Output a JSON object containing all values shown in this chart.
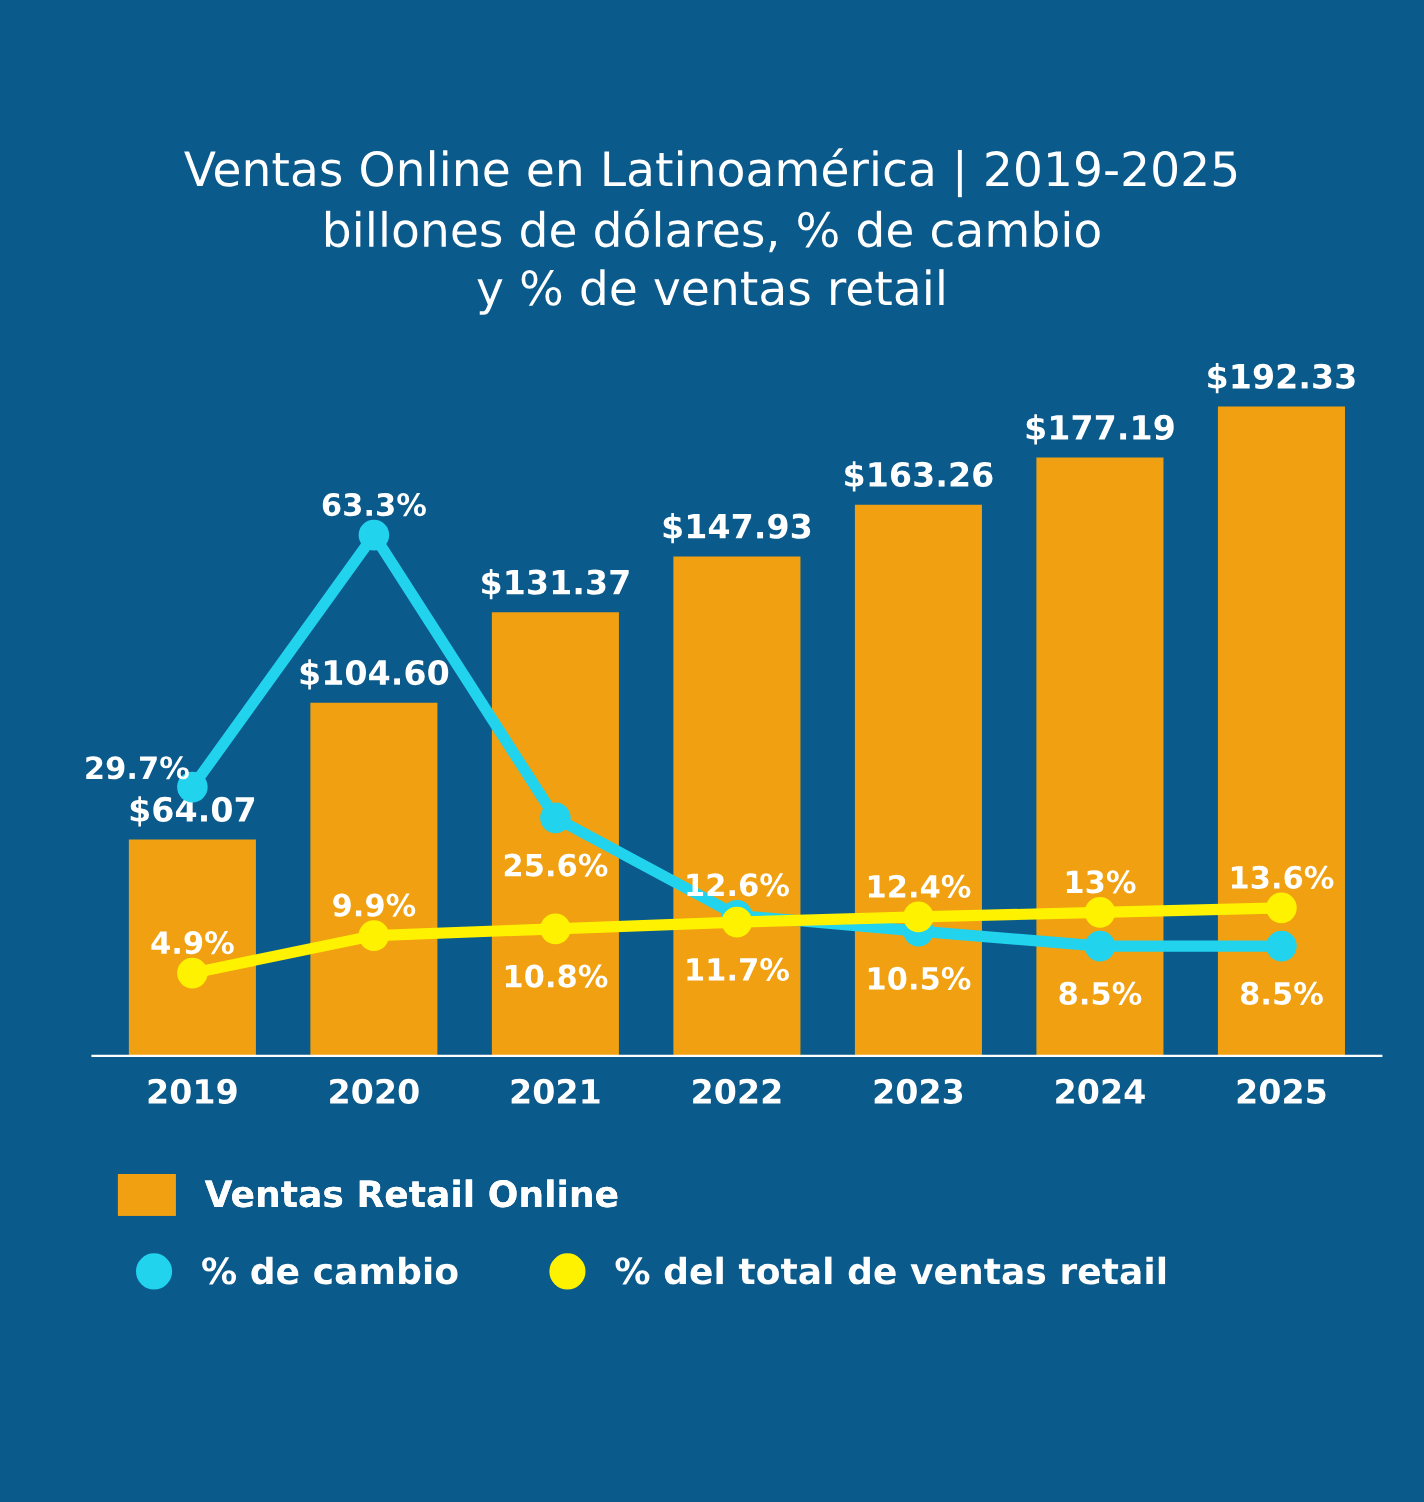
{
  "chart_data": {
    "type": "bar",
    "title": "Ventas Online en Latinoamérica | 2019-2025",
    "subtitle": "billones de dólares, % de cambio\ny % de ventas retail",
    "categories": [
      "2019",
      "2020",
      "2021",
      "2022",
      "2023",
      "2024",
      "2025"
    ],
    "series": [
      {
        "name": "Ventas Retail Online",
        "color": "#f0a010",
        "values": [
          64.07,
          104.6,
          131.37,
          147.93,
          163.26,
          177.19,
          192.33
        ],
        "value_labels": [
          "$64.07",
          "$104.60",
          "$131.37",
          "$147.93",
          "$163.26",
          "$177.19",
          "$192.33"
        ]
      },
      {
        "name": "% de cambio",
        "type": "line",
        "axis": "y2",
        "color": "#22d3ee",
        "values": [
          29.7,
          63.3,
          25.6,
          12.6,
          10.5,
          8.5,
          8.5
        ],
        "value_labels": [
          "29.7%",
          "63.3%",
          "25.6%",
          "12.6%",
          "10.5%",
          "8.5%",
          "8.5%"
        ]
      },
      {
        "name": "% del total de ventas retail",
        "type": "line",
        "axis": "y2",
        "color": "#fff200",
        "values": [
          4.9,
          9.9,
          10.8,
          11.7,
          12.4,
          13,
          13.6
        ],
        "value_labels": [
          "4.9%",
          "9.9%",
          "10.8%",
          "11.7%",
          "12.4%",
          "13%",
          "13.6%"
        ]
      }
    ],
    "marker": "circle",
    "line_style": "solid",
    "grid": false,
    "legend": "bottom",
    "tick_labels": "x"
  }
}
